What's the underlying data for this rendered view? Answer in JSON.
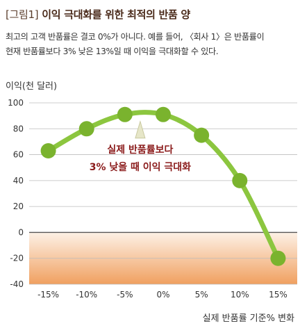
{
  "header": {
    "figure_tag": "[그림1]",
    "title": "이익 극대화를 위한 최적의 반품 양",
    "description_lines": [
      "최고의 고객 반품률은 결코 0%가 아니다. 예를 들어, 〈회사 1〉은 반품률이",
      "현재 반품률보다 3% 낮은 13%일 때 이익을 극대화할 수 있다."
    ]
  },
  "colors": {
    "line": "#8cc63f",
    "marker": "#7ab32e",
    "annotation": "#8a1a1a",
    "loss_zone_top": "#fdf1e6",
    "loss_zone_bottom": "#f0a060"
  },
  "chart_data": {
    "type": "line",
    "title": "이익 극대화를 위한 최적의 반품 양",
    "xlabel": "실제 반품률 기준% 변화",
    "ylabel": "이익(천 달러)",
    "x_ticks": [
      "-15%",
      "-10%",
      "-5%",
      "0%",
      "5%",
      "10%",
      "15%"
    ],
    "x_tick_values": [
      -15,
      -10,
      -5,
      0,
      5,
      10,
      15
    ],
    "xlim": [
      -17.5,
      17.5
    ],
    "ylim": [
      -40,
      100
    ],
    "y_ticks": [
      -40,
      -20,
      0,
      20,
      40,
      60,
      80,
      100
    ],
    "grid": true,
    "shaded_region": {
      "from": -40,
      "to": 0,
      "meaning": "loss zone"
    },
    "series": [
      {
        "x": [
          -15,
          -10,
          -5,
          0,
          5,
          10,
          15
        ],
        "values": [
          63,
          80,
          91,
          91,
          75,
          40,
          -20
        ]
      }
    ],
    "peak_x": -3,
    "annotation": {
      "lines": [
        "실제 반품률보다",
        "3% 낮을 때 이익 극대화"
      ],
      "x": -3
    }
  }
}
